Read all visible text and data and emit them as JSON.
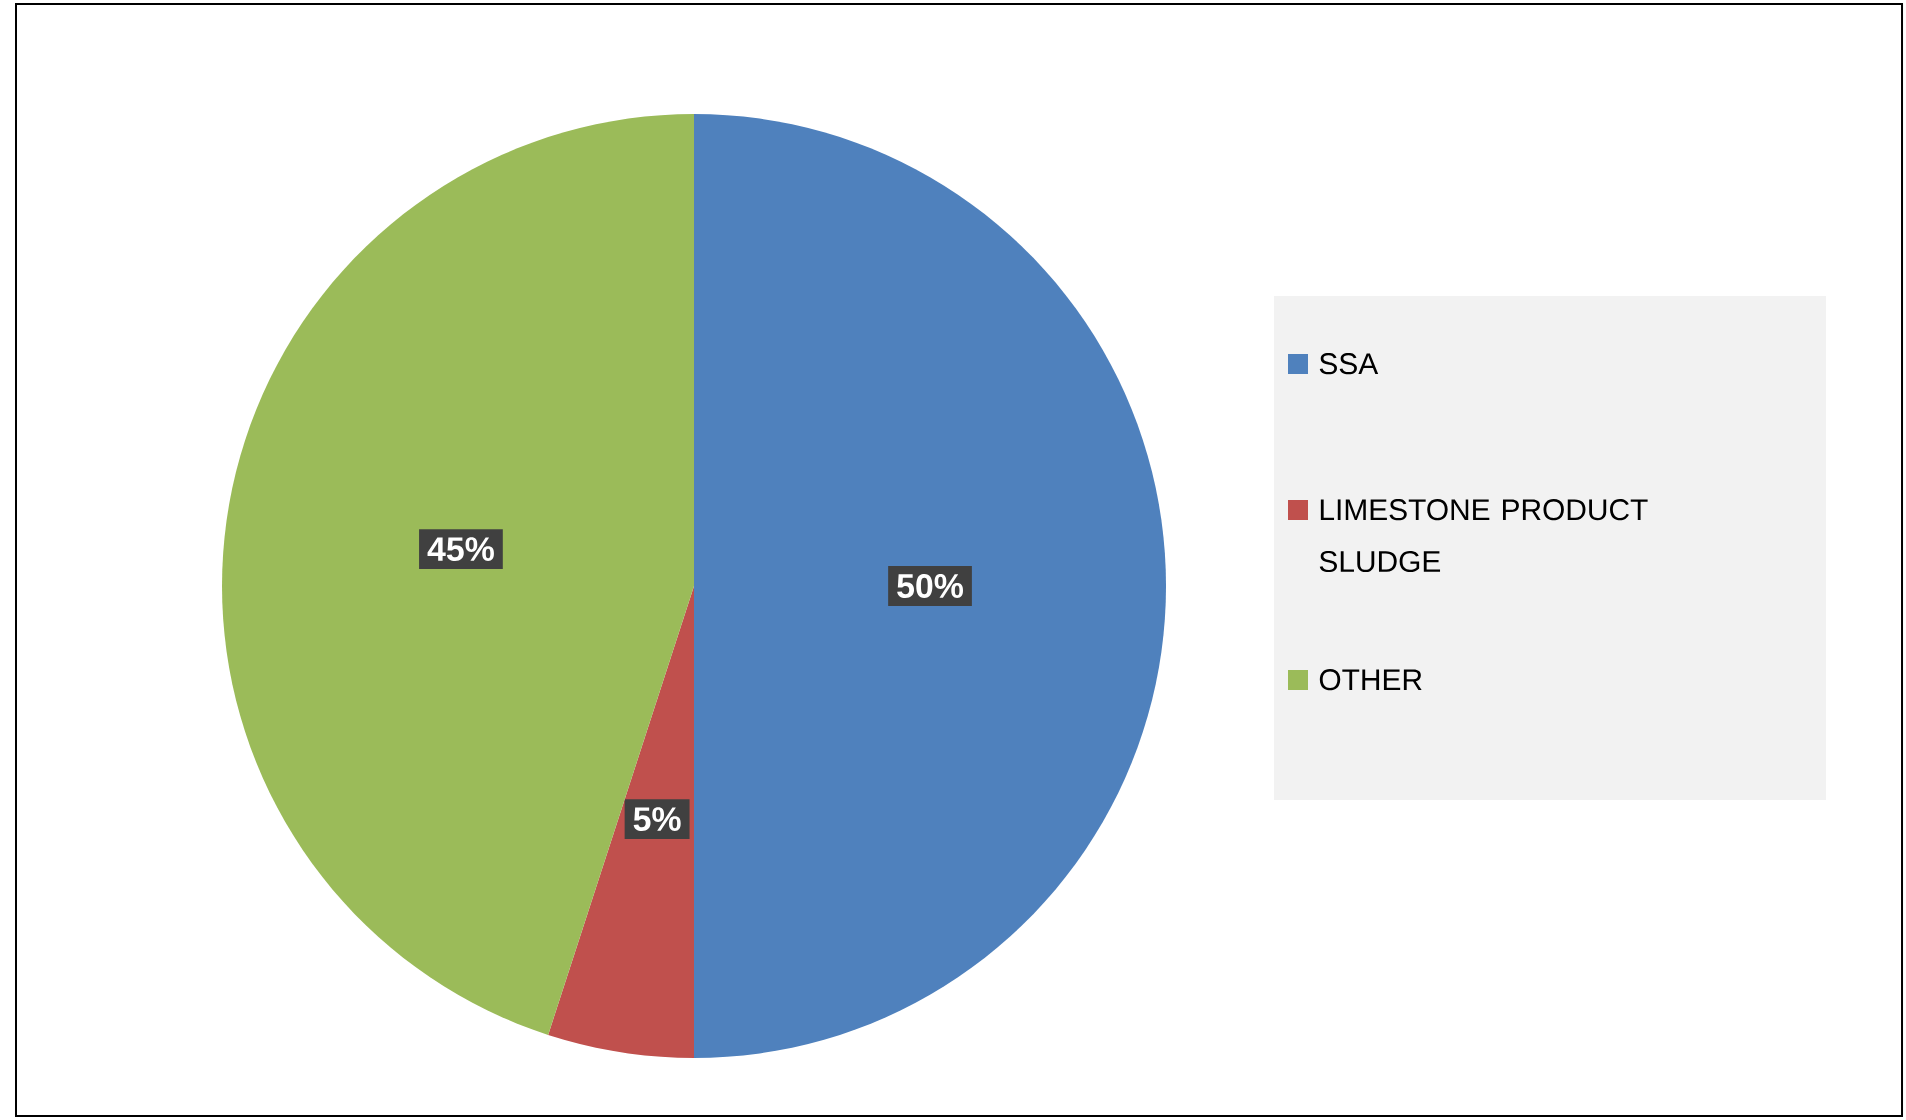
{
  "chart_data": {
    "type": "pie",
    "categories": [
      "SSA",
      "LIMESTONE PRODUCT SLUDGE",
      "OTHER"
    ],
    "values": [
      50,
      5,
      45
    ],
    "colors": [
      "#4f81bd",
      "#c0504d",
      "#9bbb59"
    ],
    "value_labels": [
      "50%",
      "5%",
      "45%"
    ],
    "legend": "right"
  }
}
